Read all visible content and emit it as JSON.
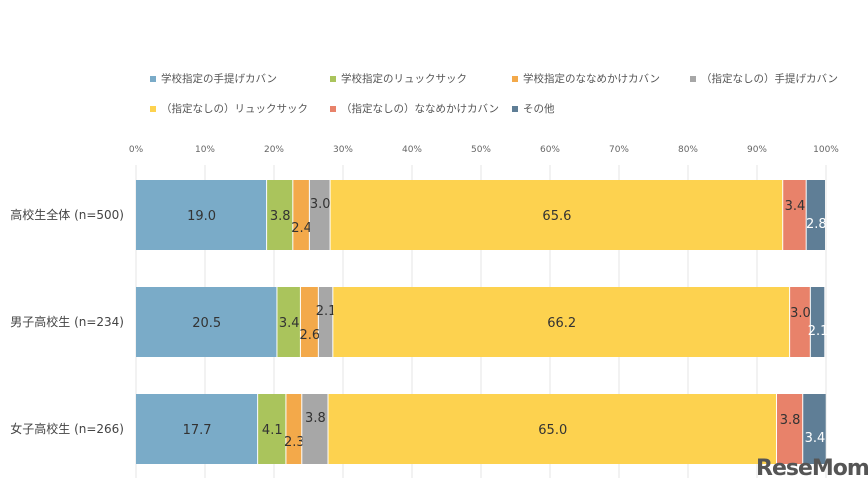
{
  "chart_data": {
    "type": "bar",
    "orientation": "horizontal",
    "stacked": true,
    "categories": [
      "高校生全体 (n=500)",
      "男子高校生 (n=234)",
      "女子高校生 (n=266)"
    ],
    "series": [
      {
        "name": "学校指定の手提げカバン",
        "color": "#7AABC8",
        "values": [
          19.0,
          20.5,
          17.7
        ]
      },
      {
        "name": "学校指定のリュックサック",
        "color": "#AAC45C",
        "values": [
          3.8,
          3.4,
          4.1
        ]
      },
      {
        "name": "学校指定のななめかけカバン",
        "color": "#F3A94A",
        "values": [
          2.4,
          2.6,
          2.3
        ]
      },
      {
        "name": "（指定なしの）手提げカバン",
        "color": "#A7A7A7",
        "values": [
          3.0,
          2.1,
          3.8
        ]
      },
      {
        "name": "（指定なしの）リュックサック",
        "color": "#FDD24F",
        "values": [
          65.6,
          66.2,
          65.0
        ]
      },
      {
        "name": "（指定なしの）ななめかけカバン",
        "color": "#E8826A",
        "values": [
          3.4,
          3.0,
          3.8
        ]
      },
      {
        "name": "その他",
        "color": "#5F7E96",
        "values": [
          2.8,
          2.1,
          3.4
        ]
      }
    ],
    "xlim": [
      0,
      100
    ],
    "xticks": [
      "0%",
      "10%",
      "20%",
      "30%",
      "40%",
      "50%",
      "60%",
      "70%",
      "80%",
      "90%",
      "100%"
    ],
    "grid": true,
    "legend_position": "top"
  },
  "watermark": "ReseMom"
}
